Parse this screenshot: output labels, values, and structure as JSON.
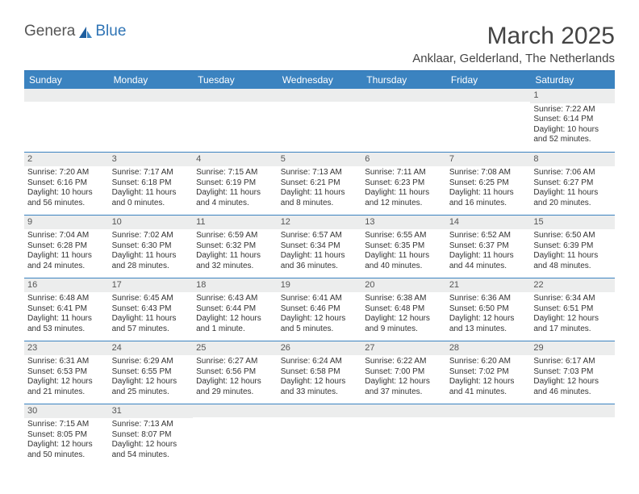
{
  "logo": {
    "part1": "Genera",
    "part2": "Blue"
  },
  "title": "March 2025",
  "subtitle": "Anklaar, Gelderland, The Netherlands",
  "colors": {
    "header_bg": "#3b83c0",
    "header_text": "#ffffff",
    "daynum_bg": "#eceded",
    "border": "#3b83c0",
    "logo_accent": "#2f74b5"
  },
  "day_headers": [
    "Sunday",
    "Monday",
    "Tuesday",
    "Wednesday",
    "Thursday",
    "Friday",
    "Saturday"
  ],
  "weeks": [
    [
      {
        "n": "",
        "sunrise": "",
        "sunset": "",
        "daylight": ""
      },
      {
        "n": "",
        "sunrise": "",
        "sunset": "",
        "daylight": ""
      },
      {
        "n": "",
        "sunrise": "",
        "sunset": "",
        "daylight": ""
      },
      {
        "n": "",
        "sunrise": "",
        "sunset": "",
        "daylight": ""
      },
      {
        "n": "",
        "sunrise": "",
        "sunset": "",
        "daylight": ""
      },
      {
        "n": "",
        "sunrise": "",
        "sunset": "",
        "daylight": ""
      },
      {
        "n": "1",
        "sunrise": "Sunrise: 7:22 AM",
        "sunset": "Sunset: 6:14 PM",
        "daylight": "Daylight: 10 hours and 52 minutes."
      }
    ],
    [
      {
        "n": "2",
        "sunrise": "Sunrise: 7:20 AM",
        "sunset": "Sunset: 6:16 PM",
        "daylight": "Daylight: 10 hours and 56 minutes."
      },
      {
        "n": "3",
        "sunrise": "Sunrise: 7:17 AM",
        "sunset": "Sunset: 6:18 PM",
        "daylight": "Daylight: 11 hours and 0 minutes."
      },
      {
        "n": "4",
        "sunrise": "Sunrise: 7:15 AM",
        "sunset": "Sunset: 6:19 PM",
        "daylight": "Daylight: 11 hours and 4 minutes."
      },
      {
        "n": "5",
        "sunrise": "Sunrise: 7:13 AM",
        "sunset": "Sunset: 6:21 PM",
        "daylight": "Daylight: 11 hours and 8 minutes."
      },
      {
        "n": "6",
        "sunrise": "Sunrise: 7:11 AM",
        "sunset": "Sunset: 6:23 PM",
        "daylight": "Daylight: 11 hours and 12 minutes."
      },
      {
        "n": "7",
        "sunrise": "Sunrise: 7:08 AM",
        "sunset": "Sunset: 6:25 PM",
        "daylight": "Daylight: 11 hours and 16 minutes."
      },
      {
        "n": "8",
        "sunrise": "Sunrise: 7:06 AM",
        "sunset": "Sunset: 6:27 PM",
        "daylight": "Daylight: 11 hours and 20 minutes."
      }
    ],
    [
      {
        "n": "9",
        "sunrise": "Sunrise: 7:04 AM",
        "sunset": "Sunset: 6:28 PM",
        "daylight": "Daylight: 11 hours and 24 minutes."
      },
      {
        "n": "10",
        "sunrise": "Sunrise: 7:02 AM",
        "sunset": "Sunset: 6:30 PM",
        "daylight": "Daylight: 11 hours and 28 minutes."
      },
      {
        "n": "11",
        "sunrise": "Sunrise: 6:59 AM",
        "sunset": "Sunset: 6:32 PM",
        "daylight": "Daylight: 11 hours and 32 minutes."
      },
      {
        "n": "12",
        "sunrise": "Sunrise: 6:57 AM",
        "sunset": "Sunset: 6:34 PM",
        "daylight": "Daylight: 11 hours and 36 minutes."
      },
      {
        "n": "13",
        "sunrise": "Sunrise: 6:55 AM",
        "sunset": "Sunset: 6:35 PM",
        "daylight": "Daylight: 11 hours and 40 minutes."
      },
      {
        "n": "14",
        "sunrise": "Sunrise: 6:52 AM",
        "sunset": "Sunset: 6:37 PM",
        "daylight": "Daylight: 11 hours and 44 minutes."
      },
      {
        "n": "15",
        "sunrise": "Sunrise: 6:50 AM",
        "sunset": "Sunset: 6:39 PM",
        "daylight": "Daylight: 11 hours and 48 minutes."
      }
    ],
    [
      {
        "n": "16",
        "sunrise": "Sunrise: 6:48 AM",
        "sunset": "Sunset: 6:41 PM",
        "daylight": "Daylight: 11 hours and 53 minutes."
      },
      {
        "n": "17",
        "sunrise": "Sunrise: 6:45 AM",
        "sunset": "Sunset: 6:43 PM",
        "daylight": "Daylight: 11 hours and 57 minutes."
      },
      {
        "n": "18",
        "sunrise": "Sunrise: 6:43 AM",
        "sunset": "Sunset: 6:44 PM",
        "daylight": "Daylight: 12 hours and 1 minute."
      },
      {
        "n": "19",
        "sunrise": "Sunrise: 6:41 AM",
        "sunset": "Sunset: 6:46 PM",
        "daylight": "Daylight: 12 hours and 5 minutes."
      },
      {
        "n": "20",
        "sunrise": "Sunrise: 6:38 AM",
        "sunset": "Sunset: 6:48 PM",
        "daylight": "Daylight: 12 hours and 9 minutes."
      },
      {
        "n": "21",
        "sunrise": "Sunrise: 6:36 AM",
        "sunset": "Sunset: 6:50 PM",
        "daylight": "Daylight: 12 hours and 13 minutes."
      },
      {
        "n": "22",
        "sunrise": "Sunrise: 6:34 AM",
        "sunset": "Sunset: 6:51 PM",
        "daylight": "Daylight: 12 hours and 17 minutes."
      }
    ],
    [
      {
        "n": "23",
        "sunrise": "Sunrise: 6:31 AM",
        "sunset": "Sunset: 6:53 PM",
        "daylight": "Daylight: 12 hours and 21 minutes."
      },
      {
        "n": "24",
        "sunrise": "Sunrise: 6:29 AM",
        "sunset": "Sunset: 6:55 PM",
        "daylight": "Daylight: 12 hours and 25 minutes."
      },
      {
        "n": "25",
        "sunrise": "Sunrise: 6:27 AM",
        "sunset": "Sunset: 6:56 PM",
        "daylight": "Daylight: 12 hours and 29 minutes."
      },
      {
        "n": "26",
        "sunrise": "Sunrise: 6:24 AM",
        "sunset": "Sunset: 6:58 PM",
        "daylight": "Daylight: 12 hours and 33 minutes."
      },
      {
        "n": "27",
        "sunrise": "Sunrise: 6:22 AM",
        "sunset": "Sunset: 7:00 PM",
        "daylight": "Daylight: 12 hours and 37 minutes."
      },
      {
        "n": "28",
        "sunrise": "Sunrise: 6:20 AM",
        "sunset": "Sunset: 7:02 PM",
        "daylight": "Daylight: 12 hours and 41 minutes."
      },
      {
        "n": "29",
        "sunrise": "Sunrise: 6:17 AM",
        "sunset": "Sunset: 7:03 PM",
        "daylight": "Daylight: 12 hours and 46 minutes."
      }
    ],
    [
      {
        "n": "30",
        "sunrise": "Sunrise: 7:15 AM",
        "sunset": "Sunset: 8:05 PM",
        "daylight": "Daylight: 12 hours and 50 minutes."
      },
      {
        "n": "31",
        "sunrise": "Sunrise: 7:13 AM",
        "sunset": "Sunset: 8:07 PM",
        "daylight": "Daylight: 12 hours and 54 minutes."
      },
      {
        "n": "",
        "sunrise": "",
        "sunset": "",
        "daylight": ""
      },
      {
        "n": "",
        "sunrise": "",
        "sunset": "",
        "daylight": ""
      },
      {
        "n": "",
        "sunrise": "",
        "sunset": "",
        "daylight": ""
      },
      {
        "n": "",
        "sunrise": "",
        "sunset": "",
        "daylight": ""
      },
      {
        "n": "",
        "sunrise": "",
        "sunset": "",
        "daylight": ""
      }
    ]
  ]
}
